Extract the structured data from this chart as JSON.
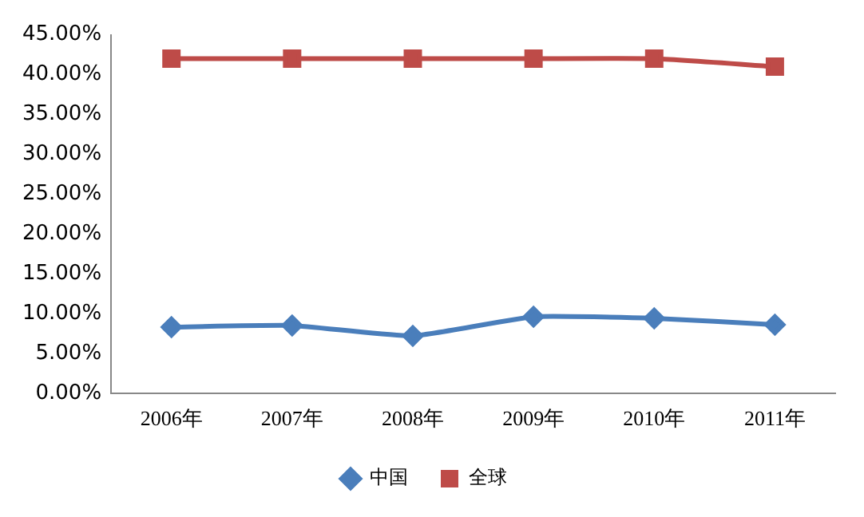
{
  "chart_data": {
    "type": "line",
    "categories": [
      "2006年",
      "2007年",
      "2008年",
      "2009年",
      "2010年",
      "2011年"
    ],
    "series": [
      {
        "name": "中国",
        "color": "#4a7ebb",
        "marker": "diamond",
        "values": [
          8.3,
          8.5,
          7.2,
          9.6,
          9.4,
          8.6
        ]
      },
      {
        "name": "全球",
        "color": "#be4b48",
        "marker": "square",
        "values": [
          42,
          42,
          42,
          42,
          42,
          41
        ]
      }
    ],
    "ylim": [
      0,
      45
    ],
    "yticks": [
      {
        "value": 0,
        "label": "0.00%"
      },
      {
        "value": 5,
        "label": "5.00%"
      },
      {
        "value": 10,
        "label": "10.00%"
      },
      {
        "value": 15,
        "label": "15.00%"
      },
      {
        "value": 20,
        "label": "20.00%"
      },
      {
        "value": 25,
        "label": "25.00%"
      },
      {
        "value": 30,
        "label": "30.00%"
      },
      {
        "value": 35,
        "label": "35.00%"
      },
      {
        "value": 40,
        "label": "40.00%"
      },
      {
        "value": 45,
        "label": "45.00%"
      }
    ],
    "grid": false,
    "legend": "bottom",
    "line_style": "solid"
  }
}
